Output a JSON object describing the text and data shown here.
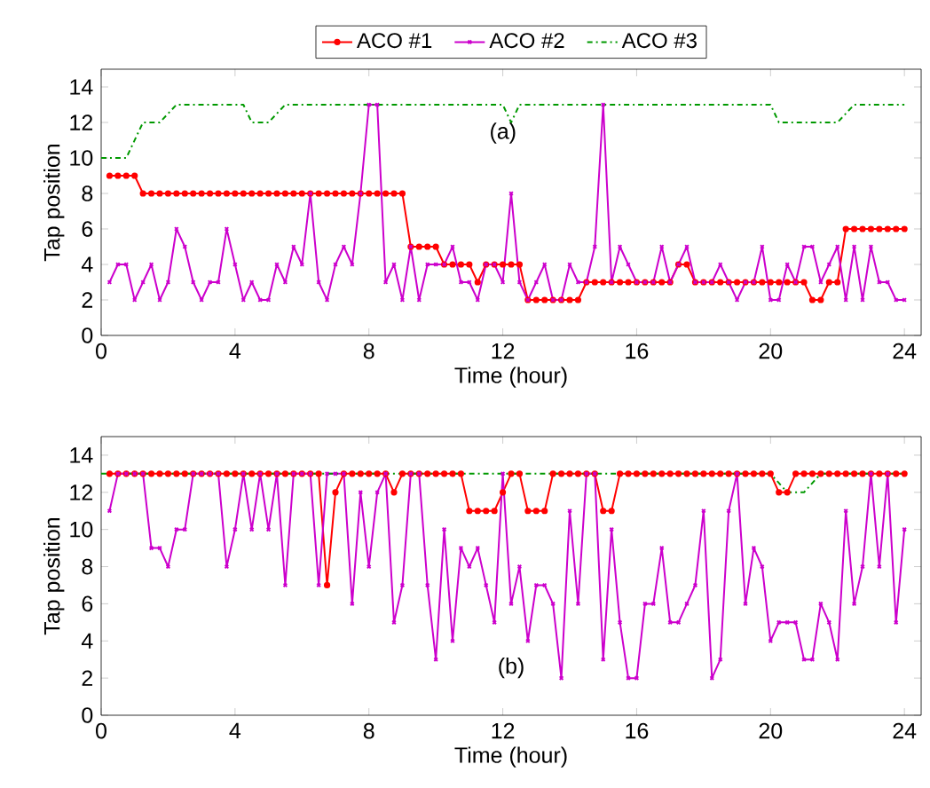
{
  "chart_data": [
    {
      "type": "line",
      "xlabel": "Time (hour)",
      "ylabel": "Tap position",
      "annotations": [
        "(a)"
      ],
      "legend": "top",
      "xlim": [
        0,
        24.5
      ],
      "ylim": [
        0,
        15
      ],
      "xticks": [
        0,
        4,
        8,
        12,
        16,
        20,
        24
      ],
      "yticks": [
        0,
        2,
        4,
        6,
        8,
        10,
        12,
        14
      ],
      "x": [
        0.25,
        0.5,
        0.75,
        1,
        1.25,
        1.5,
        1.75,
        2,
        2.25,
        2.5,
        2.75,
        3,
        3.25,
        3.5,
        3.75,
        4,
        4.25,
        4.5,
        4.75,
        5,
        5.25,
        5.5,
        5.75,
        6,
        6.25,
        6.5,
        6.75,
        7,
        7.25,
        7.5,
        7.75,
        8,
        8.25,
        8.5,
        8.75,
        9,
        9.25,
        9.5,
        9.75,
        10,
        10.25,
        10.5,
        10.75,
        11,
        11.25,
        11.5,
        11.75,
        12,
        12.25,
        12.5,
        12.75,
        13,
        13.25,
        13.5,
        13.75,
        14,
        14.25,
        14.5,
        14.75,
        15,
        15.25,
        15.5,
        15.75,
        16,
        16.25,
        16.5,
        16.75,
        17,
        17.25,
        17.5,
        17.75,
        18,
        18.25,
        18.5,
        18.75,
        19,
        19.25,
        19.5,
        19.75,
        20,
        20.25,
        20.5,
        20.75,
        21,
        21.25,
        21.5,
        21.75,
        22,
        22.25,
        22.5,
        22.75,
        23,
        23.25,
        23.5,
        23.75,
        24
      ],
      "series": [
        {
          "name": "ACO #1",
          "color": "#ff0000",
          "marker": "circle",
          "line_style": "solid",
          "values": [
            9,
            9,
            9,
            9,
            8,
            8,
            8,
            8,
            8,
            8,
            8,
            8,
            8,
            8,
            8,
            8,
            8,
            8,
            8,
            8,
            8,
            8,
            8,
            8,
            8,
            8,
            8,
            8,
            8,
            8,
            8,
            8,
            8,
            8,
            8,
            8,
            5,
            5,
            5,
            5,
            4,
            4,
            4,
            4,
            3,
            4,
            4,
            4,
            4,
            4,
            2,
            2,
            2,
            2,
            2,
            2,
            2,
            3,
            3,
            3,
            3,
            3,
            3,
            3,
            3,
            3,
            3,
            3,
            4,
            4,
            3,
            3,
            3,
            3,
            3,
            3,
            3,
            3,
            3,
            3,
            3,
            3,
            3,
            3,
            2,
            2,
            3,
            3,
            6,
            6,
            6,
            6,
            6,
            6,
            6,
            6
          ]
        },
        {
          "name": "ACO #2",
          "color": "#cc00cc",
          "marker": "cross",
          "line_style": "solid",
          "values": [
            3,
            4,
            4,
            2,
            3,
            4,
            2,
            3,
            6,
            5,
            3,
            2,
            3,
            3,
            6,
            4,
            2,
            3,
            2,
            2,
            4,
            3,
            5,
            4,
            8,
            3,
            2,
            4,
            5,
            4,
            8,
            13,
            13,
            3,
            4,
            2,
            5,
            2,
            4,
            4,
            4,
            5,
            3,
            3,
            2,
            4,
            4,
            3,
            8,
            3,
            2,
            3,
            4,
            2,
            2,
            4,
            3,
            3,
            5,
            13,
            3,
            5,
            4,
            3,
            3,
            3,
            5,
            3,
            4,
            5,
            3,
            3,
            3,
            4,
            3,
            2,
            3,
            3,
            5,
            2,
            2,
            4,
            3,
            5,
            5,
            3,
            4,
            5,
            2,
            5,
            2,
            5,
            3,
            3,
            2,
            2
          ]
        },
        {
          "name": "ACO #3",
          "color": "#009900",
          "marker": "none",
          "line_style": "dashdot",
          "x": [
            0,
            0.75,
            1.25,
            1.75,
            2.25,
            4.25,
            4.5,
            5,
            5.5,
            12,
            12.25,
            12.5,
            20,
            20.25,
            22,
            22.5,
            24
          ],
          "values": [
            10,
            10,
            12,
            12,
            13,
            13,
            12,
            12,
            13,
            13,
            12,
            13,
            13,
            12,
            12,
            13,
            13
          ]
        }
      ]
    },
    {
      "type": "line",
      "xlabel": "Time (hour)",
      "ylabel": "Tap position",
      "annotations": [
        "(b)"
      ],
      "xlim": [
        0,
        24.5
      ],
      "ylim": [
        0,
        15
      ],
      "xticks": [
        0,
        4,
        8,
        12,
        16,
        20,
        24
      ],
      "yticks": [
        0,
        2,
        4,
        6,
        8,
        10,
        12,
        14
      ],
      "x": [
        0.25,
        0.5,
        0.75,
        1,
        1.25,
        1.5,
        1.75,
        2,
        2.25,
        2.5,
        2.75,
        3,
        3.25,
        3.5,
        3.75,
        4,
        4.25,
        4.5,
        4.75,
        5,
        5.25,
        5.5,
        5.75,
        6,
        6.25,
        6.5,
        6.75,
        7,
        7.25,
        7.5,
        7.75,
        8,
        8.25,
        8.5,
        8.75,
        9,
        9.25,
        9.5,
        9.75,
        10,
        10.25,
        10.5,
        10.75,
        11,
        11.25,
        11.5,
        11.75,
        12,
        12.25,
        12.5,
        12.75,
        13,
        13.25,
        13.5,
        13.75,
        14,
        14.25,
        14.5,
        14.75,
        15,
        15.25,
        15.5,
        15.75,
        16,
        16.25,
        16.5,
        16.75,
        17,
        17.25,
        17.5,
        17.75,
        18,
        18.25,
        18.5,
        18.75,
        19,
        19.25,
        19.5,
        19.75,
        20,
        20.25,
        20.5,
        20.75,
        21,
        21.25,
        21.5,
        21.75,
        22,
        22.25,
        22.5,
        22.75,
        23,
        23.25,
        23.5,
        23.75,
        24
      ],
      "series": [
        {
          "color": "#ff0000",
          "marker": "circle",
          "line_style": "solid",
          "values": [
            13,
            13,
            13,
            13,
            13,
            13,
            13,
            13,
            13,
            13,
            13,
            13,
            13,
            13,
            13,
            13,
            13,
            13,
            13,
            13,
            13,
            13,
            13,
            13,
            13,
            13,
            7,
            12,
            13,
            13,
            13,
            13,
            13,
            13,
            12,
            13,
            13,
            13,
            13,
            13,
            13,
            13,
            13,
            11,
            11,
            11,
            11,
            12,
            13,
            13,
            11,
            11,
            11,
            13,
            13,
            13,
            13,
            13,
            13,
            11,
            11,
            13,
            13,
            13,
            13,
            13,
            13,
            13,
            13,
            13,
            13,
            13,
            13,
            13,
            13,
            13,
            13,
            13,
            13,
            13,
            12,
            12,
            13,
            13,
            13,
            13,
            13,
            13,
            13,
            13,
            13,
            13,
            13,
            13,
            13,
            13
          ]
        },
        {
          "color": "#cc00cc",
          "marker": "cross",
          "line_style": "solid",
          "values": [
            11,
            13,
            13,
            13,
            13,
            9,
            9,
            8,
            10,
            10,
            13,
            13,
            13,
            13,
            8,
            10,
            13,
            10,
            13,
            10,
            13,
            7,
            13,
            13,
            13,
            7,
            13,
            13,
            13,
            6,
            12,
            8,
            12,
            13,
            5,
            7,
            13,
            13,
            7,
            3,
            10,
            4,
            9,
            8,
            9,
            7,
            5,
            13,
            6,
            8,
            4,
            7,
            7,
            6,
            2,
            11,
            6,
            13,
            13,
            3,
            10,
            5,
            2,
            2,
            6,
            6,
            9,
            5,
            5,
            6,
            7,
            11,
            2,
            3,
            11,
            13,
            6,
            9,
            8,
            4,
            5,
            5,
            5,
            3,
            3,
            6,
            5,
            3,
            11,
            6,
            8,
            13,
            8,
            13,
            5,
            10
          ]
        },
        {
          "color": "#009900",
          "marker": "none",
          "line_style": "dashdot",
          "x": [
            0,
            20,
            20.5,
            21,
            21.5,
            24
          ],
          "values": [
            13,
            13,
            12,
            12,
            13,
            13
          ]
        }
      ]
    }
  ]
}
